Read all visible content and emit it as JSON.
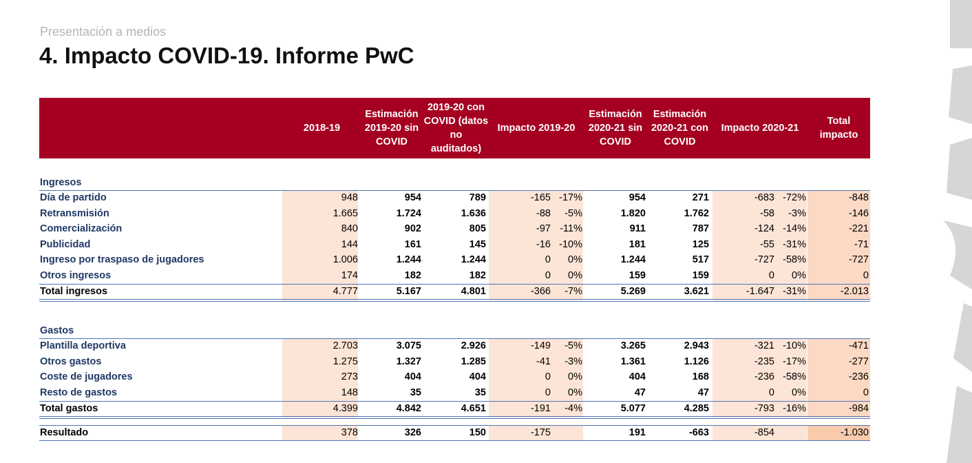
{
  "header": {
    "subtitle": "Presentación a medios",
    "title": "4. Impacto COVID-19. Informe PwC"
  },
  "table": {
    "columns": [
      "2018-19",
      "Estimación 2019-20 sin COVID",
      "2019-20 con COVID (datos no auditados)",
      "Impacto 2019-20",
      "Estimación 2020-21 sin COVID",
      "Estimación 2020-21 con COVID",
      "Impacto 2020-21",
      "Total impacto"
    ],
    "sections": [
      {
        "title": "Ingresos",
        "rows": [
          {
            "label": "Día de partido",
            "values": [
              "948",
              "954",
              "789",
              {
                "value": "-165",
                "pct": "-17%"
              },
              "954",
              "271",
              {
                "value": "-683",
                "pct": "-72%"
              },
              "-848"
            ]
          },
          {
            "label": "Retransmisión",
            "values": [
              "1.665",
              "1.724",
              "1.636",
              {
                "value": "-88",
                "pct": "-5%"
              },
              "1.820",
              "1.762",
              {
                "value": "-58",
                "pct": "-3%"
              },
              "-146"
            ]
          },
          {
            "label": "Comercialización",
            "values": [
              "840",
              "902",
              "805",
              {
                "value": "-97",
                "pct": "-11%"
              },
              "911",
              "787",
              {
                "value": "-124",
                "pct": "-14%"
              },
              "-221"
            ]
          },
          {
            "label": "Publicidad",
            "values": [
              "144",
              "161",
              "145",
              {
                "value": "-16",
                "pct": "-10%"
              },
              "181",
              "125",
              {
                "value": "-55",
                "pct": "-31%"
              },
              "-71"
            ]
          },
          {
            "label": "Ingreso por traspaso de jugadores",
            "values": [
              "1.006",
              "1.244",
              "1.244",
              {
                "value": "0",
                "pct": "0%"
              },
              "1.244",
              "517",
              {
                "value": "-727",
                "pct": "-58%"
              },
              "-727"
            ]
          },
          {
            "label": "Otros ingresos",
            "values": [
              "174",
              "182",
              "182",
              {
                "value": "0",
                "pct": "0%"
              },
              "159",
              "159",
              {
                "value": "0",
                "pct": "0%"
              },
              "0"
            ]
          }
        ],
        "total": {
          "label": "Total ingresos",
          "values": [
            "4.777",
            "5.167",
            "4.801",
            {
              "value": "-366",
              "pct": "-7%"
            },
            "5.269",
            "3.621",
            {
              "value": "-1.647",
              "pct": "-31%"
            },
            "-2.013"
          ]
        }
      },
      {
        "title": "Gastos",
        "rows": [
          {
            "label": "Plantilla deportiva",
            "values": [
              "2.703",
              "3.075",
              "2.926",
              {
                "value": "-149",
                "pct": "-5%"
              },
              "3.265",
              "2.943",
              {
                "value": "-321",
                "pct": "-10%"
              },
              "-471"
            ]
          },
          {
            "label": "Otros gastos",
            "values": [
              "1.275",
              "1.327",
              "1.285",
              {
                "value": "-41",
                "pct": "-3%"
              },
              "1.361",
              "1.126",
              {
                "value": "-235",
                "pct": "-17%"
              },
              "-277"
            ]
          },
          {
            "label": "Coste de jugadores",
            "values": [
              "273",
              "404",
              "404",
              {
                "value": "0",
                "pct": "0%"
              },
              "404",
              "168",
              {
                "value": "-236",
                "pct": "-58%"
              },
              "-236"
            ]
          },
          {
            "label": "Resto de gastos",
            "values": [
              "148",
              "35",
              "35",
              {
                "value": "0",
                "pct": "0%"
              },
              "47",
              "47",
              {
                "value": "0",
                "pct": "0%"
              },
              "0"
            ]
          }
        ],
        "total": {
          "label": "Total gastos",
          "values": [
            "4.399",
            "4.842",
            "4.651",
            {
              "value": "-191",
              "pct": "-4%"
            },
            "5.077",
            "4.285",
            {
              "value": "-793",
              "pct": "-16%"
            },
            "-984"
          ]
        }
      }
    ],
    "result": {
      "label": "Resultado",
      "values": [
        "378",
        "326",
        "150",
        {
          "value": "-175"
        },
        "191",
        "-663",
        {
          "value": "-854"
        },
        "-1.030"
      ]
    }
  }
}
